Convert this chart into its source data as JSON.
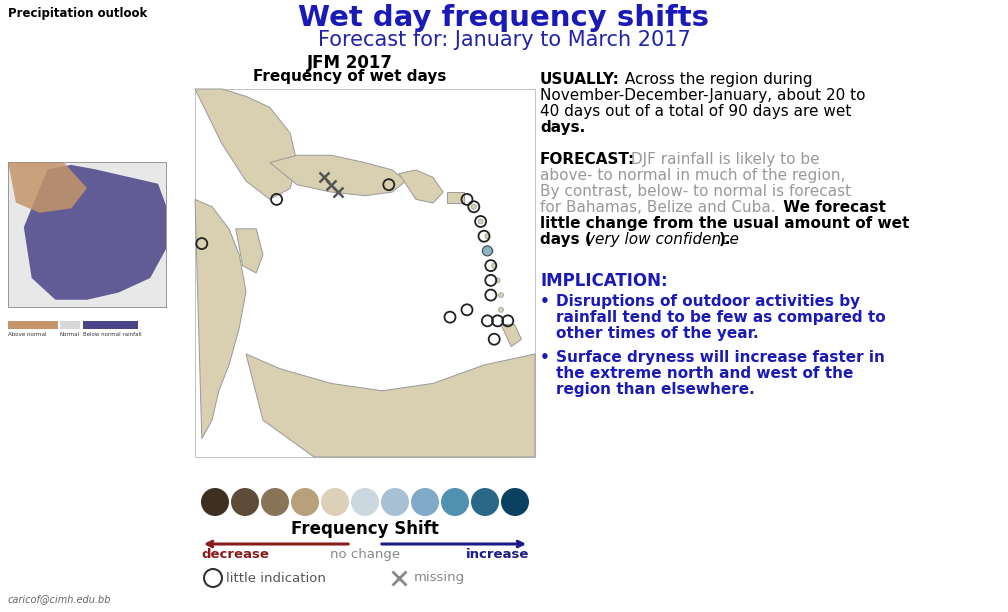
{
  "title_main": "Wet day frequency shifts",
  "title_sub": "Forecast for: January to March 2017",
  "title_main_color": "#1a1ab8",
  "title_sub_color": "#2222aa",
  "topleft_label": "Precipitation outlook",
  "map_title1": "JFM 2017",
  "map_title2": "Frequency of wet days",
  "freq_shift_label": "Frequency Shift",
  "decrease_label": "decrease",
  "no_change_label": "no change",
  "increase_label": "increase",
  "little_indication_label": "little indication",
  "missing_label": "missing",
  "decrease_color": "#8b1a1a",
  "increase_color": "#1a1a8b",
  "bg_color": "#ffffff",
  "email": "caricof@cimh.edu.bb",
  "colorbar_colors": [
    "#3d3020",
    "#5e4c38",
    "#8a7458",
    "#b8a07a",
    "#ddd0b8",
    "#ccd8e0",
    "#a8c0d4",
    "#80aac8",
    "#5090b0",
    "#2a6888",
    "#0a4060"
  ],
  "usually_bold": "USUALLY:",
  "usually_rest": " Across the region during\nNovember-December-January, about 20 to\n40 days out of a total of 90 days are wet\ndays.",
  "forecast_bold": "FORECAST:",
  "forecast_gray": " DJF rainfall is likely to be\nabove- to normal in much of the region,\nBy contrast, below- to normal is forecast\nfor Bahamas, Belize and Cuba.",
  "forecast_bold2": " We forecast\nlittle change from the usual amount of wet\ndays (",
  "forecast_italic": "very low confidence",
  "forecast_end": ").",
  "implication_label": "IMPLICATION:",
  "implication_color": "#1a1ab8",
  "bullet1_lines": [
    "Disruptions of outdoor activities by",
    "rainfall tend to be few as compared to",
    "other times of the year."
  ],
  "bullet2_lines": [
    "Surface dryness will increase faster in",
    "the extreme north and west of the",
    "region than elsewhere."
  ]
}
